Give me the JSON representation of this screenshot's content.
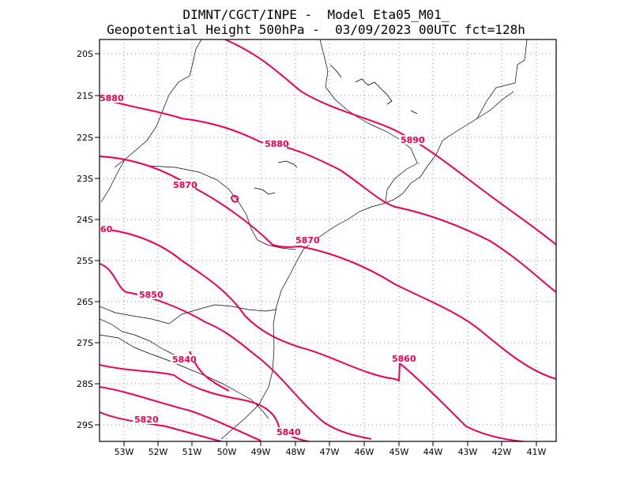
{
  "header": {
    "line1": "DIMNT/CGCT/INPE -  Model Eta05_M01_",
    "line2": "Geopotential Height 500hPa -  03/09/2023 00UTC fct=128h"
  },
  "map": {
    "lat_labels": [
      "20S",
      "21S",
      "22S",
      "23S",
      "24S",
      "25S",
      "26S",
      "27S",
      "28S",
      "29S"
    ],
    "lon_labels": [
      "53W",
      "52W",
      "51W",
      "50W",
      "49W",
      "48W",
      "47W",
      "46W",
      "45W",
      "44W",
      "43W",
      "42W",
      "41W"
    ],
    "contour_color": "#ee0055",
    "contour_labels": [
      "5880",
      "5880",
      "5890",
      "5870",
      "5870",
      "60",
      "5850",
      "5840",
      "5860",
      "5820",
      "5840"
    ]
  }
}
